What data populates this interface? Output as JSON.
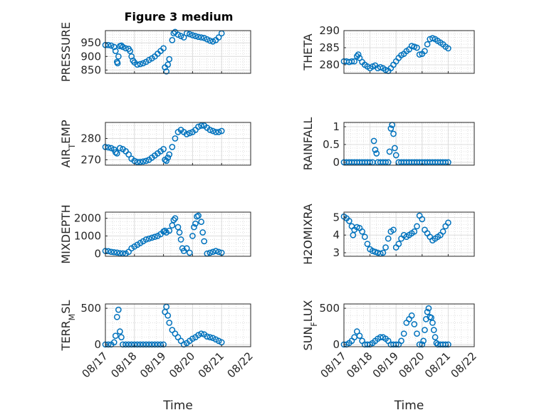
{
  "chart_data": [
    {
      "type": "scatter",
      "title": "Figure 3 medium",
      "ylabel": "PRESSURE",
      "xlabel": "",
      "xlim": [
        "08/17",
        "08/22"
      ],
      "ylim": [
        838,
        995
      ],
      "yticks": [
        "850",
        "900",
        "950"
      ],
      "xticks": [],
      "series": [
        {
          "x": [
            0,
            0.1,
            0.2,
            0.3,
            0.35,
            0.4,
            0.42,
            0.45,
            0.5,
            0.55,
            0.6,
            0.7,
            0.8,
            0.85,
            0.9,
            0.95,
            1.0,
            1.1,
            1.2,
            1.3,
            1.4,
            1.5,
            1.6,
            1.7,
            1.8,
            1.9,
            2.0,
            2.05,
            2.1,
            2.15,
            2.2,
            2.3,
            2.35,
            2.4,
            2.5,
            2.6,
            2.7,
            2.8,
            2.9,
            3.0,
            3.1,
            3.2,
            3.3,
            3.4,
            3.5,
            3.6,
            3.7,
            3.8,
            3.9,
            4.0
          ],
          "y": [
            942,
            942,
            940,
            935,
            920,
            880,
            875,
            900,
            938,
            940,
            935,
            930,
            928,
            920,
            900,
            885,
            878,
            870,
            872,
            875,
            880,
            887,
            893,
            900,
            910,
            920,
            930,
            860,
            845,
            870,
            890,
            960,
            985,
            990,
            980,
            975,
            970,
            985,
            982,
            978,
            975,
            972,
            970,
            968,
            963,
            958,
            955,
            960,
            970,
            985
          ]
        }
      ]
    },
    {
      "type": "scatter",
      "ylabel": "THETA",
      "xlim": [
        "08/17",
        "08/22"
      ],
      "ylim": [
        277.5,
        290
      ],
      "yticks": [
        "280",
        "285",
        "290"
      ],
      "xticks": [],
      "series": [
        {
          "x": [
            0,
            0.1,
            0.2,
            0.3,
            0.4,
            0.5,
            0.55,
            0.6,
            0.7,
            0.8,
            0.9,
            1.0,
            1.1,
            1.2,
            1.3,
            1.4,
            1.5,
            1.6,
            1.7,
            1.8,
            1.9,
            2.0,
            2.1,
            2.2,
            2.3,
            2.4,
            2.5,
            2.6,
            2.7,
            2.8,
            2.9,
            3.0,
            3.1,
            3.2,
            3.3,
            3.4,
            3.5,
            3.6,
            3.7,
            3.8,
            3.9,
            4.0
          ],
          "y": [
            281,
            281,
            280.8,
            281,
            281,
            282.5,
            283,
            282,
            280.8,
            280,
            279.5,
            279,
            279.5,
            279.8,
            279,
            279.3,
            279,
            278.5,
            278.2,
            279,
            280,
            281,
            282,
            282.8,
            283.2,
            284,
            284.5,
            285.5,
            285.3,
            285,
            283,
            283.2,
            284,
            286,
            287.5,
            287.8,
            287.5,
            287,
            286.5,
            286,
            285.3,
            284.8
          ]
        }
      ]
    },
    {
      "type": "scatter",
      "ylabel": "AIR_TEMP",
      "xlim": [
        "08/17",
        "08/22"
      ],
      "ylim": [
        267.5,
        287.5
      ],
      "yticks": [
        "270",
        "280"
      ],
      "xticks": [],
      "series": [
        {
          "x": [
            0,
            0.1,
            0.2,
            0.3,
            0.35,
            0.4,
            0.5,
            0.6,
            0.7,
            0.8,
            0.9,
            1.0,
            1.1,
            1.2,
            1.3,
            1.4,
            1.5,
            1.6,
            1.7,
            1.8,
            1.9,
            2.0,
            2.05,
            2.1,
            2.15,
            2.2,
            2.3,
            2.4,
            2.5,
            2.6,
            2.7,
            2.8,
            2.9,
            3.0,
            3.1,
            3.2,
            3.3,
            3.4,
            3.5,
            3.6,
            3.7,
            3.8,
            3.9,
            4.0
          ],
          "y": [
            276,
            275.8,
            275.5,
            274.8,
            273.5,
            273,
            275.5,
            275,
            274,
            272.5,
            270.5,
            269.5,
            269,
            269,
            269.2,
            269.5,
            270,
            271,
            272,
            273,
            274,
            275,
            270,
            269.5,
            271,
            272.5,
            276,
            280,
            283,
            284,
            283,
            282,
            282.5,
            283,
            284,
            285.5,
            286,
            286,
            285,
            284,
            283.5,
            283,
            283,
            283.5
          ]
        }
      ]
    },
    {
      "type": "scatter",
      "ylabel": "RAINFALL",
      "xlim": [
        "08/17",
        "08/22"
      ],
      "ylim": [
        -0.08,
        1.12
      ],
      "yticks": [
        "0",
        "0.5",
        "1"
      ],
      "xticks": [],
      "series": [
        {
          "x": [
            0,
            0.1,
            0.2,
            0.3,
            0.4,
            0.5,
            0.6,
            0.7,
            0.8,
            0.9,
            1.0,
            1.1,
            1.15,
            1.2,
            1.25,
            1.3,
            1.4,
            1.5,
            1.6,
            1.7,
            1.75,
            1.8,
            1.85,
            1.9,
            1.95,
            2.0,
            2.1,
            2.2,
            2.3,
            2.4,
            2.5,
            2.6,
            2.7,
            2.8,
            2.9,
            3.0,
            3.1,
            3.2,
            3.3,
            3.4,
            3.5,
            3.6,
            3.7,
            3.8,
            3.9,
            4.0
          ],
          "y": [
            0,
            0,
            0,
            0,
            0,
            0,
            0,
            0,
            0,
            0,
            0,
            0,
            0.6,
            0.35,
            0.25,
            0,
            0,
            0,
            0,
            0,
            0.3,
            0.95,
            1.05,
            0.8,
            0.4,
            0.2,
            0,
            0,
            0,
            0,
            0,
            0,
            0,
            0,
            0,
            0,
            0,
            0,
            0,
            0,
            0,
            0,
            0,
            0,
            0,
            0
          ]
        }
      ]
    },
    {
      "type": "scatter",
      "ylabel": "MIXDEPTH",
      "xlim": [
        "08/17",
        "08/22"
      ],
      "ylim": [
        -150,
        2350
      ],
      "yticks": [
        "0",
        "1000",
        "2000"
      ],
      "xticks": [],
      "series": [
        {
          "x": [
            0,
            0.1,
            0.2,
            0.3,
            0.4,
            0.5,
            0.6,
            0.7,
            0.8,
            0.9,
            1.0,
            1.1,
            1.2,
            1.3,
            1.4,
            1.5,
            1.6,
            1.7,
            1.8,
            1.9,
            2.0,
            2.05,
            2.1,
            2.2,
            2.3,
            2.35,
            2.4,
            2.5,
            2.55,
            2.6,
            2.65,
            2.7,
            2.8,
            2.9,
            3.0,
            3.05,
            3.1,
            3.15,
            3.2,
            3.3,
            3.35,
            3.4,
            3.5,
            3.6,
            3.7,
            3.8,
            3.9,
            4.0
          ],
          "y": [
            150,
            140,
            100,
            80,
            60,
            20,
            10,
            0,
            100,
            300,
            400,
            500,
            600,
            700,
            800,
            850,
            900,
            950,
            1000,
            1100,
            1250,
            1300,
            1200,
            1300,
            1600,
            1900,
            2000,
            1500,
            1200,
            800,
            300,
            150,
            300,
            50,
            1000,
            1500,
            1700,
            2100,
            2150,
            1800,
            1200,
            700,
            0,
            50,
            100,
            150,
            100,
            50
          ]
        }
      ]
    },
    {
      "type": "scatter",
      "ylabel": "H2OMIXRA",
      "xlim": [
        "08/17",
        "08/22"
      ],
      "ylim": [
        2.8,
        5.3
      ],
      "yticks": [
        "3",
        "4",
        "5"
      ],
      "xticks": [],
      "series": [
        {
          "x": [
            0,
            0.1,
            0.2,
            0.3,
            0.35,
            0.4,
            0.5,
            0.6,
            0.7,
            0.8,
            0.9,
            1.0,
            1.1,
            1.2,
            1.3,
            1.4,
            1.5,
            1.6,
            1.7,
            1.8,
            1.9,
            2.0,
            2.1,
            2.2,
            2.3,
            2.4,
            2.5,
            2.6,
            2.7,
            2.8,
            2.9,
            3.0,
            3.1,
            3.2,
            3.3,
            3.4,
            3.5,
            3.6,
            3.7,
            3.8,
            3.9,
            4.0
          ],
          "y": [
            5.05,
            4.95,
            4.8,
            4.5,
            4.0,
            4.3,
            4.45,
            4.4,
            4.2,
            3.9,
            3.5,
            3.2,
            3.1,
            3.05,
            3.0,
            2.95,
            3.0,
            3.3,
            3.8,
            4.2,
            4.3,
            3.3,
            3.5,
            3.8,
            4.0,
            3.9,
            4.0,
            4.1,
            4.2,
            4.5,
            5.1,
            4.9,
            4.3,
            4.1,
            3.9,
            3.7,
            3.8,
            3.9,
            4.0,
            4.2,
            4.5,
            4.7
          ]
        }
      ]
    },
    {
      "type": "scatter",
      "ylabel": "TERR_MSL",
      "xlim": [
        "08/17",
        "08/22"
      ],
      "ylim": [
        -30,
        560
      ],
      "yticks": [
        "0",
        "500"
      ],
      "xticks": [
        "08/17",
        "08/18",
        "08/19",
        "08/20",
        "08/21",
        "08/22"
      ],
      "xlabel": "Time",
      "series": [
        {
          "x": [
            0,
            0.1,
            0.2,
            0.3,
            0.35,
            0.4,
            0.45,
            0.5,
            0.55,
            0.6,
            0.7,
            0.8,
            0.9,
            1.0,
            1.1,
            1.2,
            1.3,
            1.4,
            1.5,
            1.6,
            1.7,
            1.8,
            1.9,
            2.0,
            2.05,
            2.1,
            2.15,
            2.2,
            2.3,
            2.4,
            2.5,
            2.6,
            2.7,
            2.8,
            2.9,
            3.0,
            3.1,
            3.2,
            3.3,
            3.4,
            3.5,
            3.6,
            3.7,
            3.8,
            3.9,
            4.0
          ],
          "y": [
            0,
            0,
            0,
            30,
            120,
            380,
            480,
            180,
            100,
            0,
            0,
            0,
            0,
            0,
            0,
            0,
            0,
            0,
            0,
            0,
            0,
            0,
            0,
            0,
            450,
            520,
            400,
            300,
            200,
            150,
            100,
            50,
            0,
            20,
            50,
            80,
            100,
            130,
            150,
            140,
            110,
            100,
            90,
            70,
            50,
            30
          ]
        }
      ]
    },
    {
      "type": "scatter",
      "ylabel": "SUN_FLUX",
      "xlim": [
        "08/17",
        "08/22"
      ],
      "ylim": [
        -30,
        560
      ],
      "yticks": [
        "0",
        "500"
      ],
      "xticks": [
        "08/17",
        "08/18",
        "08/19",
        "08/20",
        "08/21",
        "08/22"
      ],
      "xlabel": "Time",
      "series": [
        {
          "x": [
            0,
            0.1,
            0.2,
            0.3,
            0.4,
            0.5,
            0.6,
            0.7,
            0.8,
            0.9,
            1.0,
            1.1,
            1.2,
            1.3,
            1.4,
            1.5,
            1.6,
            1.7,
            1.8,
            1.9,
            2.0,
            2.1,
            2.2,
            2.3,
            2.4,
            2.5,
            2.6,
            2.7,
            2.8,
            2.9,
            3.0,
            3.05,
            3.1,
            3.15,
            3.2,
            3.25,
            3.3,
            3.35,
            3.4,
            3.45,
            3.5,
            3.55,
            3.6,
            3.7,
            3.8,
            3.9,
            4.0
          ],
          "y": [
            0,
            0,
            20,
            50,
            100,
            180,
            120,
            50,
            0,
            0,
            0,
            20,
            50,
            80,
            100,
            100,
            80,
            50,
            0,
            0,
            0,
            0,
            50,
            150,
            300,
            350,
            400,
            280,
            150,
            0,
            0,
            50,
            200,
            350,
            450,
            500,
            380,
            370,
            300,
            200,
            100,
            20,
            0,
            0,
            0,
            0,
            0
          ]
        }
      ]
    }
  ]
}
